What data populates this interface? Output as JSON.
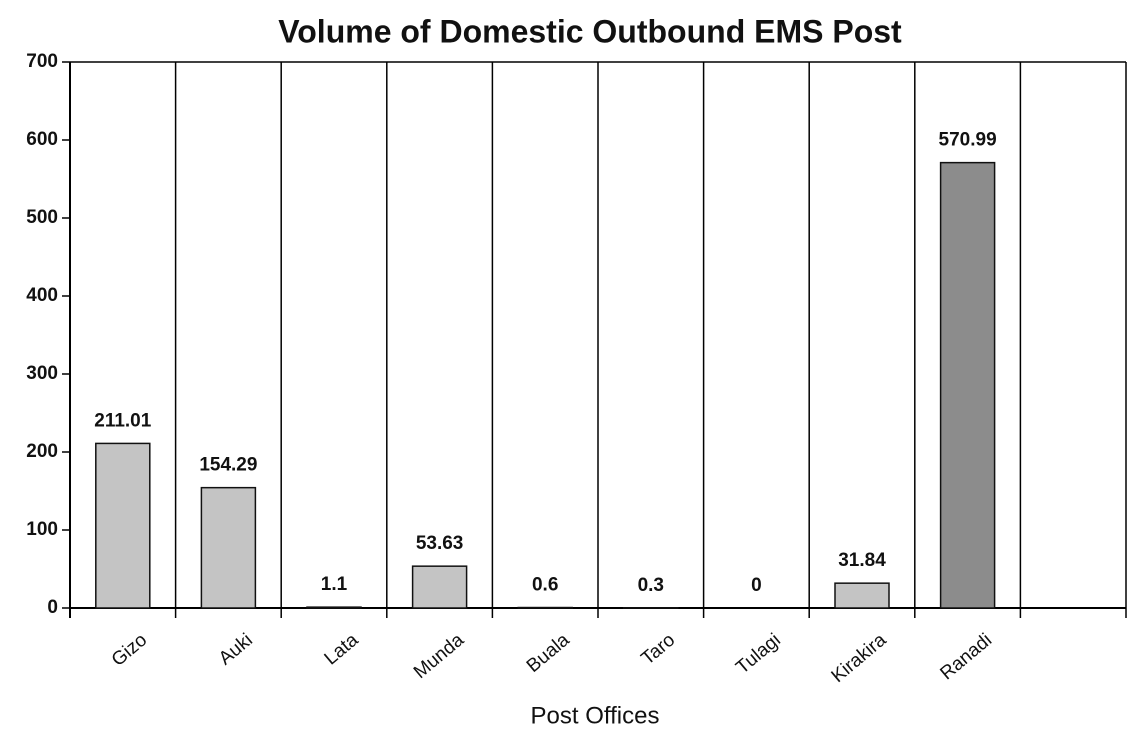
{
  "chart_data": {
    "type": "bar",
    "title": "Volume of Domestic Outbound EMS Post",
    "x_label": "Post Offices",
    "categories": [
      "Gizo",
      "Auki",
      "Lata",
      "Munda",
      "Buala",
      "Taro",
      "Tulagi",
      "Kirakira",
      "Ranadi",
      null
    ],
    "values": [
      211.01,
      154.29,
      1.1,
      53.63,
      0.6,
      0.3,
      0,
      31.84,
      570.99,
      null
    ],
    "colors": [
      "#c4c4c4",
      "#c4c4c4",
      "#c4c4c4",
      "#c4c4c4",
      "#c4c4c4",
      "#c4c4c4",
      "#c4c4c4",
      "#c4c4c4",
      "#8c8c8c",
      null
    ],
    "ylim": [
      0,
      700
    ],
    "yticks": [
      0,
      100,
      200,
      300,
      400,
      500,
      600,
      700
    ],
    "grid": true
  }
}
